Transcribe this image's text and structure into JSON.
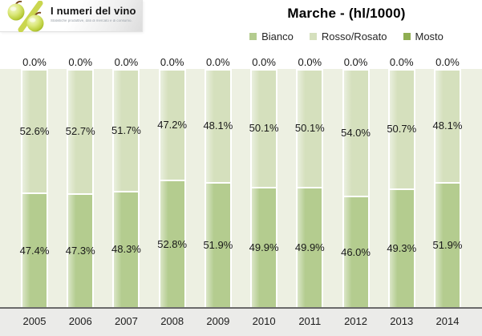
{
  "logo": {
    "icon": "grapes-percent-icon",
    "title": "I numeri del vino",
    "tagline": "Statistiche produttive, dati di mercato e di consumo."
  },
  "colors": {
    "bianco": "#b4cc8f",
    "rosso_rosato": "#d5e0bd",
    "mosto": "#8fae52",
    "plot_background": "#edf0e2",
    "footer_background": "#ebebe9",
    "axis_line": "#6a6a6a"
  },
  "chart_data": {
    "type": "bar",
    "variant": "100-percent-stacked-column",
    "title": "Marche - (hl/1000)",
    "categories": [
      "2005",
      "2006",
      "2007",
      "2008",
      "2009",
      "2010",
      "2011",
      "2012",
      "2013",
      "2014"
    ],
    "series": [
      {
        "name": "Bianco",
        "color": "#b4cc8f",
        "values": [
          47.4,
          47.3,
          48.3,
          52.8,
          51.9,
          49.9,
          49.9,
          46.0,
          49.3,
          51.9
        ]
      },
      {
        "name": "Rosso/Rosato",
        "color": "#d5e0bd",
        "values": [
          52.6,
          52.7,
          51.7,
          47.2,
          48.1,
          50.1,
          50.1,
          54.0,
          50.7,
          48.1
        ]
      },
      {
        "name": "Mosto",
        "color": "#8fae52",
        "values": [
          0.0,
          0.0,
          0.0,
          0.0,
          0.0,
          0.0,
          0.0,
          0.0,
          0.0,
          0.0
        ]
      }
    ],
    "stack_order_bottom_to_top": [
      "Bianco",
      "Rosso/Rosato",
      "Mosto"
    ],
    "value_labels": "percent-one-decimal-on-every-segment",
    "ylim": [
      0,
      100
    ],
    "legend_position": "top-center",
    "grid": false
  }
}
